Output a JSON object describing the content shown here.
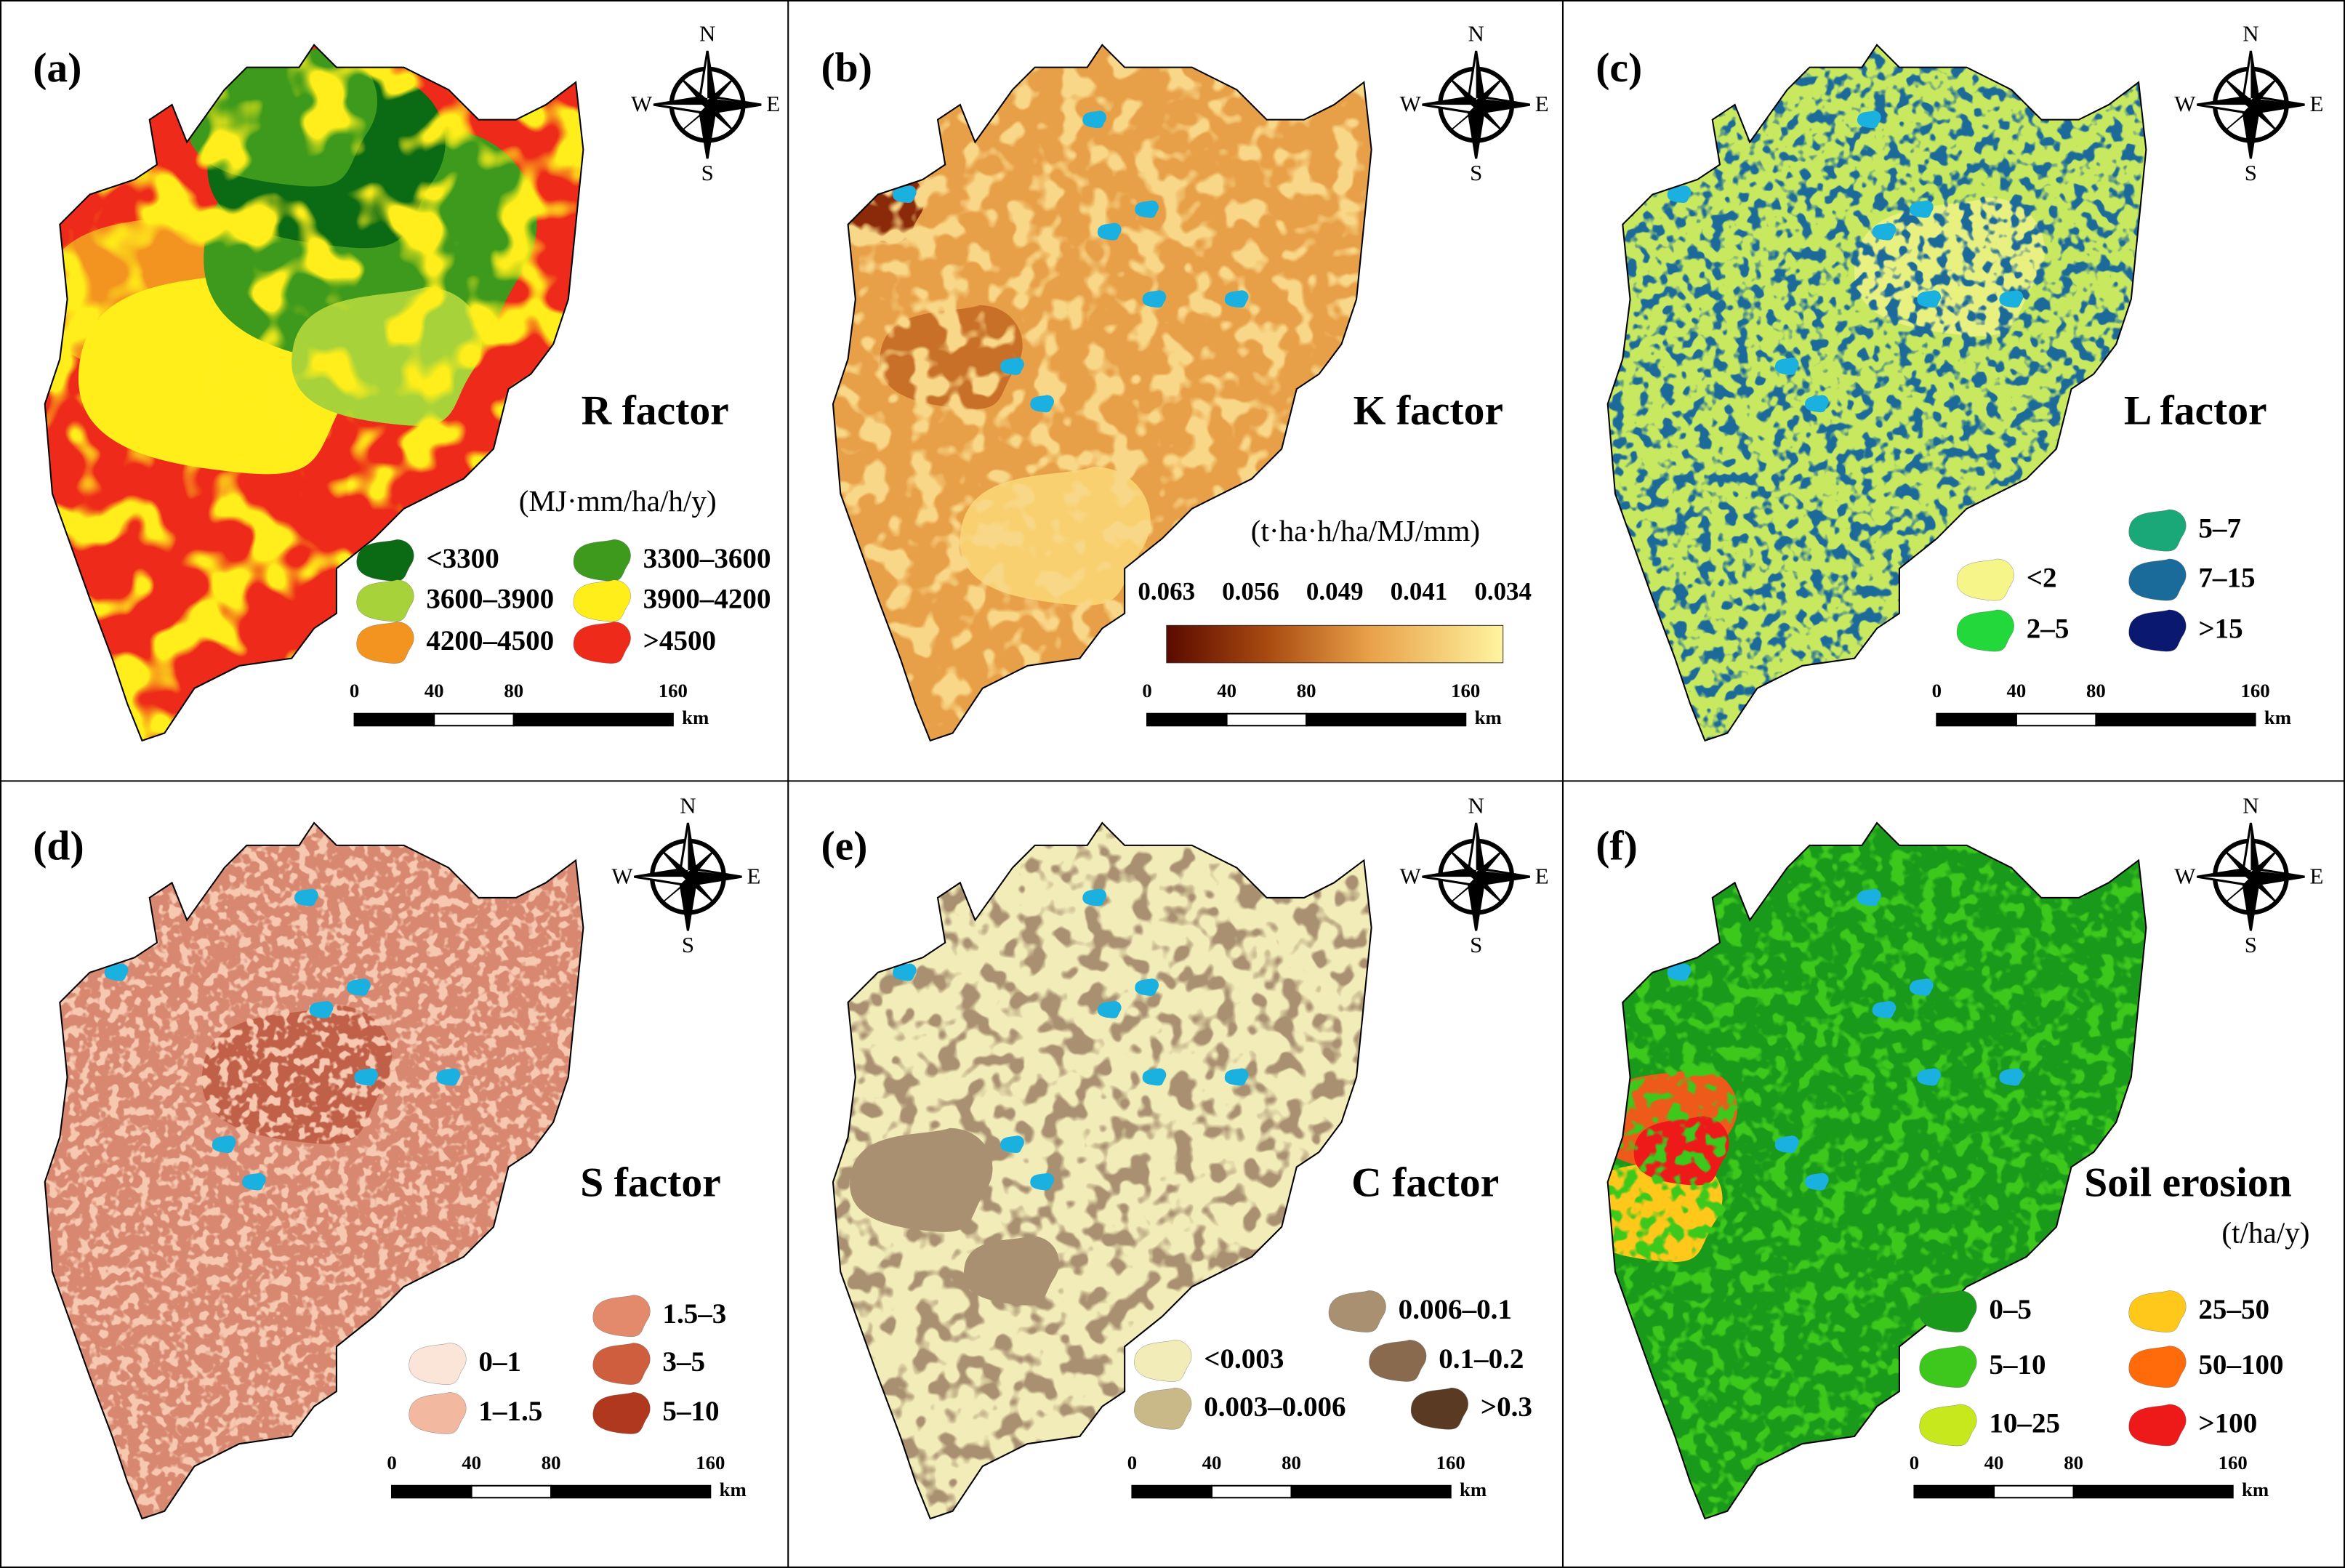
{
  "compass": {
    "n": "N",
    "s": "S",
    "w": "W",
    "e": "E"
  },
  "panels": [
    {
      "label": "(a)",
      "title": "R factor",
      "unit": "(MJ·mm/ha/h/y)",
      "legend": [
        {
          "text": "<3300",
          "color": "#0b6a14"
        },
        {
          "text": "3300–3600",
          "color": "#3e9a1c"
        },
        {
          "text": "3600–3900",
          "color": "#a8d23a"
        },
        {
          "text": "3900–4200",
          "color": "#ffee1a"
        },
        {
          "text": "4200–4500",
          "color": "#f39320"
        },
        {
          "text": ">4500",
          "color": "#ee2a1a"
        }
      ],
      "scale": [
        0,
        40,
        80,
        160
      ],
      "scale_unit": "km"
    },
    {
      "label": "(b)",
      "title": "K factor",
      "unit": "(t·ha·h/ha/MJ/mm)",
      "colorbar": [
        0.063,
        0.056,
        0.049,
        0.041,
        0.034
      ],
      "scale": [
        0,
        40,
        80,
        160
      ],
      "scale_unit": "km"
    },
    {
      "label": "(c)",
      "title": "L factor",
      "legend": [
        {
          "text": "<2",
          "color": "#f5f58a"
        },
        {
          "text": "2–5",
          "color": "#22d83a"
        },
        {
          "text": "5–7",
          "color": "#1aa878"
        },
        {
          "text": "7–15",
          "color": "#1a6a9a"
        },
        {
          "text": ">15",
          "color": "#0a1870"
        }
      ],
      "scale": [
        0,
        40,
        80,
        160
      ],
      "scale_unit": "km"
    },
    {
      "label": "(d)",
      "title": "S factor",
      "legend": [
        {
          "text": "0–1",
          "color": "#fbe4d8"
        },
        {
          "text": "1–1.5",
          "color": "#f2b8a0"
        },
        {
          "text": "1.5–3",
          "color": "#e48a6c"
        },
        {
          "text": "3–5",
          "color": "#cf5e3e"
        },
        {
          "text": "5–10",
          "color": "#b0381e"
        }
      ],
      "scale": [
        0,
        40,
        80,
        160
      ],
      "scale_unit": "km"
    },
    {
      "label": "(e)",
      "title": "C factor",
      "legend": [
        {
          "text": "<0.003",
          "color": "#f2ecb8"
        },
        {
          "text": "0.003–0.006",
          "color": "#c9b888"
        },
        {
          "text": "0.006–0.1",
          "color": "#a89070"
        },
        {
          "text": "0.1–0.2",
          "color": "#8a6a4e"
        },
        {
          "text": ">0.3",
          "color": "#5a3a22"
        }
      ],
      "scale": [
        0,
        40,
        80,
        160
      ],
      "scale_unit": "km"
    },
    {
      "label": "(f)",
      "title": "Soil erosion",
      "unit": "(t/ha/y)",
      "legend": [
        {
          "text": "0–5",
          "color": "#1a9a1a"
        },
        {
          "text": "5–10",
          "color": "#3ec81e"
        },
        {
          "text": "10–25",
          "color": "#c8e81e"
        },
        {
          "text": "25–50",
          "color": "#ffc81a"
        },
        {
          "text": "50–100",
          "color": "#ff6a0a"
        },
        {
          "text": ">100",
          "color": "#ee1a1a"
        }
      ],
      "scale": [
        0,
        40,
        80,
        160
      ],
      "scale_unit": "km"
    }
  ]
}
